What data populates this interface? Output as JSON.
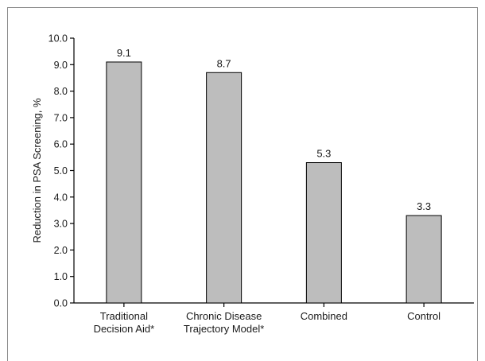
{
  "chart_data": {
    "type": "bar",
    "title": "",
    "xlabel": "",
    "ylabel": "Reduction in PSA Screening, %",
    "ylim": [
      0,
      10
    ],
    "yticks": [
      "0.0",
      "1.0",
      "2.0",
      "3.0",
      "4.0",
      "5.0",
      "6.0",
      "7.0",
      "8.0",
      "9.0",
      "10.0"
    ],
    "categories": [
      [
        "Traditional",
        "Decision Aid*"
      ],
      [
        "Chronic Disease",
        "Trajectory Model*"
      ],
      [
        "Combined"
      ],
      [
        "Control"
      ]
    ],
    "values": [
      9.1,
      8.7,
      5.3,
      3.3
    ],
    "value_labels": [
      "9.1",
      "8.7",
      "5.3",
      "3.3"
    ],
    "grid": false,
    "legend": "none",
    "colors": {
      "bar": "#bdbdbd",
      "bar_outline": "#000000",
      "frame": "#8a8a8a"
    }
  }
}
